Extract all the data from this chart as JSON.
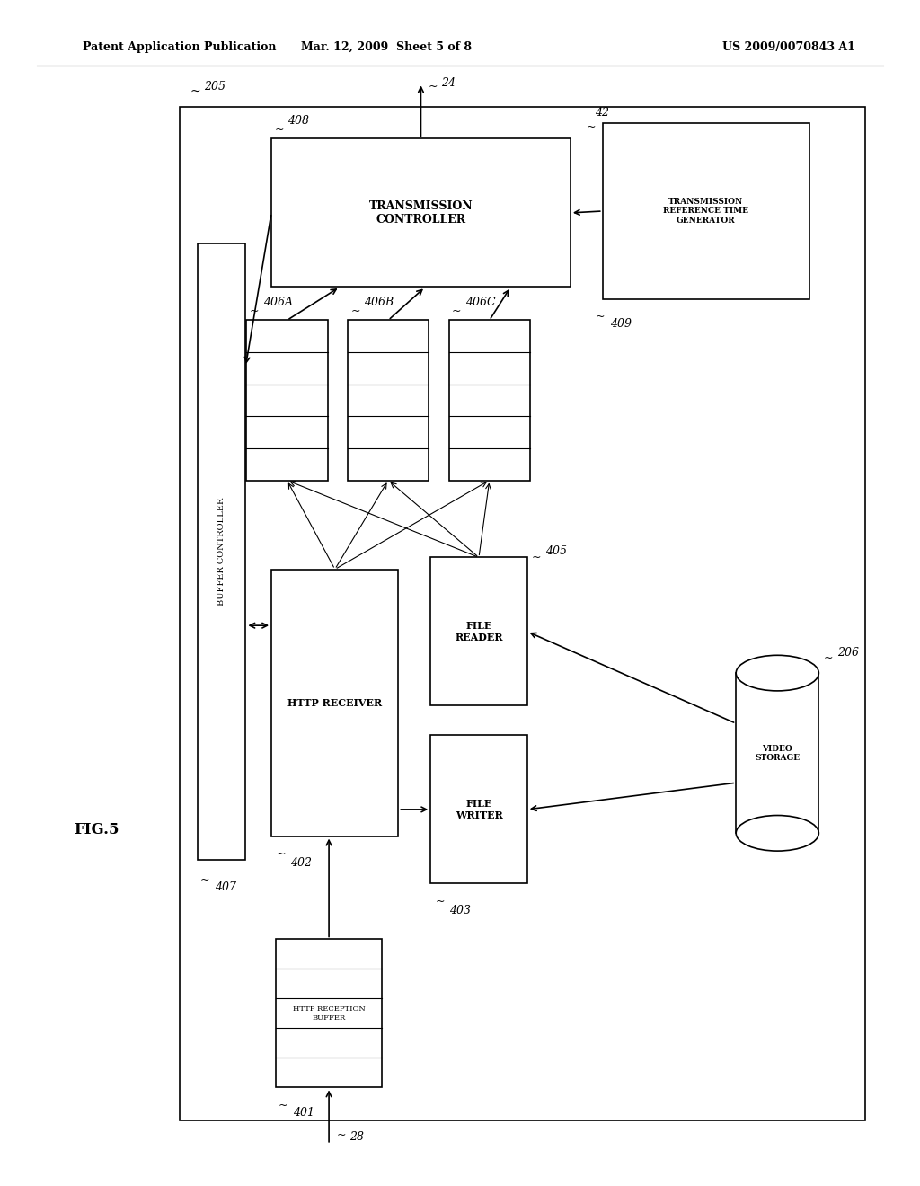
{
  "bg_color": "#ffffff",
  "header_left": "Patent Application Publication",
  "header_mid": "Mar. 12, 2009  Sheet 5 of 8",
  "header_right": "US 2009/0070843 A1",
  "fig_label": "FIG.5",
  "label_205": "205",
  "label_24": "24",
  "label_28": "28",
  "label_407": "407",
  "label_402": "402",
  "label_401": "401",
  "label_403": "403",
  "label_406A": "406A",
  "label_406B": "406B",
  "label_406C": "406C",
  "label_408": "408",
  "label_42": "42",
  "label_409": "409",
  "label_405": "405",
  "label_206": "206",
  "text_buffer_controller": "BUFFER CONTROLLER",
  "text_http_receiver": "HTTP RECEIVER",
  "text_transmission_controller": "TRANSMISSION\nCONTROLLER",
  "text_transmission_ref_gen": "TRANSMISSION\nREFERENCE TIME\nGENERATOR",
  "text_file_reader": "FILE\nREADER",
  "text_file_writer": "FILE\nWRITER",
  "text_video_storage": "VIDEO\nSTORAGE",
  "text_http_reception_buffer": "HTTP RECEPTION\nBUFFER",
  "font_size_label": 9,
  "font_size_box": 8,
  "font_size_header": 9,
  "font_size_fig": 11
}
